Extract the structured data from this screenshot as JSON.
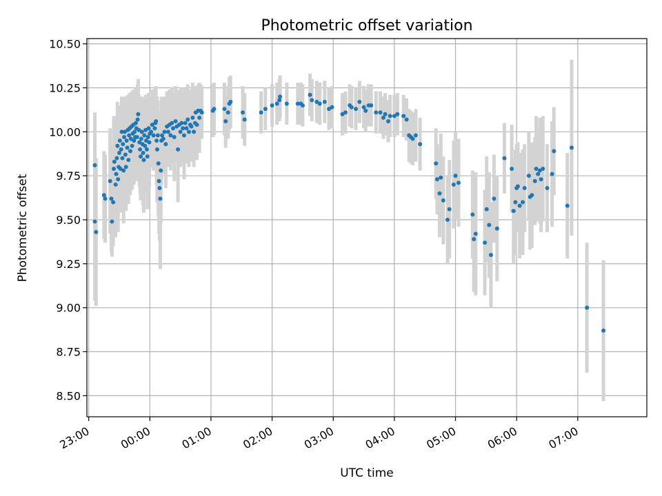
{
  "chart_data": {
    "type": "scatter",
    "title": "Photometric offset variation",
    "xlabel": "UTC time",
    "ylabel": "Photometric offset",
    "xlim_hours": [
      -1.03,
      8.13
    ],
    "ylim": [
      8.38,
      10.53
    ],
    "x_ticks": [
      {
        "hour": -1,
        "label": "23:00"
      },
      {
        "hour": 0,
        "label": "00:00"
      },
      {
        "hour": 1,
        "label": "01:00"
      },
      {
        "hour": 2,
        "label": "02:00"
      },
      {
        "hour": 3,
        "label": "03:00"
      },
      {
        "hour": 4,
        "label": "04:00"
      },
      {
        "hour": 5,
        "label": "05:00"
      },
      {
        "hour": 6,
        "label": "06:00"
      },
      {
        "hour": 7,
        "label": "07:00"
      }
    ],
    "y_ticks": [
      8.5,
      8.75,
      9.0,
      9.25,
      9.5,
      9.75,
      10.0,
      10.25,
      10.5
    ],
    "y_tick_labels": [
      "8.50",
      "8.75",
      "9.00",
      "9.25",
      "9.50",
      "9.75",
      "10.00",
      "10.25",
      "10.50"
    ],
    "grid": true,
    "colors": {
      "points": "#1f77b4",
      "errorbars": "#d3d3d3",
      "grid": "#b0b0b0"
    },
    "points": [
      [
        -0.9,
        9.81,
        0.3
      ],
      [
        -0.9,
        9.49,
        0.45
      ],
      [
        -0.88,
        9.43,
        0.42
      ],
      [
        -0.75,
        9.64,
        0.25
      ],
      [
        -0.73,
        9.62,
        0.25
      ],
      [
        -0.65,
        9.72,
        0.3
      ],
      [
        -0.63,
        9.62,
        0.3
      ],
      [
        -0.62,
        9.49,
        0.2
      ],
      [
        -0.6,
        9.6,
        0.25
      ],
      [
        -0.59,
        9.79,
        0.3
      ],
      [
        -0.58,
        9.83,
        0.25
      ],
      [
        -0.56,
        9.7,
        0.3
      ],
      [
        -0.55,
        9.76,
        0.25
      ],
      [
        -0.54,
        9.85,
        0.2
      ],
      [
        -0.53,
        9.92,
        0.25
      ],
      [
        -0.52,
        9.73,
        0.3
      ],
      [
        -0.51,
        9.8,
        0.25
      ],
      [
        -0.5,
        9.88,
        0.25
      ],
      [
        -0.49,
        9.95,
        0.2
      ],
      [
        -0.48,
        9.79,
        0.25
      ],
      [
        -0.47,
        9.9,
        0.25
      ],
      [
        -0.46,
        10.0,
        0.2
      ],
      [
        -0.45,
        9.85,
        0.25
      ],
      [
        -0.44,
        9.93,
        0.25
      ],
      [
        -0.43,
        9.78,
        0.3
      ],
      [
        -0.42,
        9.97,
        0.2
      ],
      [
        -0.41,
        10.0,
        0.2
      ],
      [
        -0.4,
        9.87,
        0.25
      ],
      [
        -0.39,
        9.8,
        0.25
      ],
      [
        -0.38,
        9.95,
        0.2
      ],
      [
        -0.37,
        9.91,
        0.25
      ],
      [
        -0.36,
        10.01,
        0.2
      ],
      [
        -0.35,
        9.84,
        0.25
      ],
      [
        -0.34,
        9.98,
        0.2
      ],
      [
        -0.33,
        10.02,
        0.2
      ],
      [
        -0.32,
        9.89,
        0.25
      ],
      [
        -0.31,
        9.96,
        0.2
      ],
      [
        -0.3,
        10.03,
        0.2
      ],
      [
        -0.29,
        9.92,
        0.25
      ],
      [
        -0.28,
        9.99,
        0.2
      ],
      [
        -0.27,
        10.04,
        0.2
      ],
      [
        -0.26,
        9.95,
        0.25
      ],
      [
        -0.25,
        10.0,
        0.2
      ],
      [
        -0.24,
        9.97,
        0.2
      ],
      [
        -0.23,
        10.05,
        0.2
      ],
      [
        -0.22,
        10.02,
        0.2
      ],
      [
        -0.21,
        9.97,
        0.25
      ],
      [
        -0.2,
        10.07,
        0.2
      ],
      [
        -0.19,
        10.1,
        0.2
      ],
      [
        -0.18,
        10.01,
        0.2
      ],
      [
        -0.17,
        9.94,
        0.25
      ],
      [
        -0.16,
        9.9,
        0.25
      ],
      [
        -0.15,
        9.86,
        0.25
      ],
      [
        -0.14,
        9.96,
        0.2
      ],
      [
        -0.13,
        10.0,
        0.2
      ],
      [
        -0.12,
        9.93,
        0.25
      ],
      [
        -0.11,
        9.88,
        0.3
      ],
      [
        -0.1,
        9.84,
        0.3
      ],
      [
        -0.09,
        9.98,
        0.2
      ],
      [
        -0.08,
        9.92,
        0.25
      ],
      [
        -0.07,
        10.01,
        0.2
      ],
      [
        -0.06,
        9.95,
        0.25
      ],
      [
        -0.05,
        9.9,
        0.25
      ],
      [
        -0.04,
        9.86,
        0.3
      ],
      [
        -0.03,
        9.97,
        0.2
      ],
      [
        -0.02,
        10.02,
        0.2
      ],
      [
        -0.01,
        9.94,
        0.25
      ],
      [
        0.0,
        9.99,
        0.2
      ],
      [
        0.02,
        10.0,
        0.2
      ],
      [
        0.04,
        10.04,
        0.2
      ],
      [
        0.06,
        9.98,
        0.2
      ],
      [
        0.08,
        10.02,
        0.2
      ],
      [
        0.09,
        10.05,
        0.2
      ],
      [
        0.1,
        10.06,
        0.2
      ],
      [
        0.11,
        9.95,
        0.25
      ],
      [
        0.12,
        9.9,
        0.3
      ],
      [
        0.13,
        9.98,
        0.2
      ],
      [
        0.14,
        9.82,
        0.3
      ],
      [
        0.15,
        9.72,
        0.3
      ],
      [
        0.16,
        9.68,
        0.3
      ],
      [
        0.17,
        9.62,
        0.4
      ],
      [
        0.18,
        9.78,
        0.3
      ],
      [
        0.19,
        9.95,
        0.25
      ],
      [
        0.2,
        9.98,
        0.2
      ],
      [
        0.22,
        9.96,
        0.2
      ],
      [
        0.24,
        10.0,
        0.2
      ],
      [
        0.26,
        9.93,
        0.25
      ],
      [
        0.28,
        10.03,
        0.2
      ],
      [
        0.3,
        10.0,
        0.2
      ],
      [
        0.32,
        10.04,
        0.2
      ],
      [
        0.34,
        9.98,
        0.2
      ],
      [
        0.36,
        10.05,
        0.2
      ],
      [
        0.38,
        10.02,
        0.2
      ],
      [
        0.4,
        9.97,
        0.25
      ],
      [
        0.42,
        10.06,
        0.2
      ],
      [
        0.44,
        10.03,
        0.2
      ],
      [
        0.46,
        9.9,
        0.3
      ],
      [
        0.48,
        10.04,
        0.2
      ],
      [
        0.5,
        10.0,
        0.2
      ],
      [
        0.52,
        10.05,
        0.2
      ],
      [
        0.54,
        10.02,
        0.2
      ],
      [
        0.56,
        9.98,
        0.25
      ],
      [
        0.58,
        10.05,
        0.2
      ],
      [
        0.6,
        10.02,
        0.2
      ],
      [
        0.62,
        10.07,
        0.2
      ],
      [
        0.64,
        10.0,
        0.2
      ],
      [
        0.66,
        10.04,
        0.2
      ],
      [
        0.68,
        10.03,
        0.2
      ],
      [
        0.7,
        10.08,
        0.2
      ],
      [
        0.72,
        10.0,
        0.2
      ],
      [
        0.74,
        10.05,
        0.2
      ],
      [
        0.75,
        10.11,
        0.15
      ],
      [
        0.77,
        10.04,
        0.2
      ],
      [
        0.79,
        10.12,
        0.15
      ],
      [
        0.81,
        10.08,
        0.2
      ],
      [
        0.83,
        10.12,
        0.15
      ],
      [
        0.85,
        10.11,
        0.15
      ],
      [
        1.03,
        10.12,
        0.15
      ],
      [
        1.05,
        10.13,
        0.15
      ],
      [
        1.22,
        10.13,
        0.15
      ],
      [
        1.24,
        10.06,
        0.15
      ],
      [
        1.28,
        10.11,
        0.15
      ],
      [
        1.3,
        10.16,
        0.15
      ],
      [
        1.32,
        10.17,
        0.15
      ],
      [
        1.52,
        10.11,
        0.15
      ],
      [
        1.55,
        10.07,
        0.15
      ],
      [
        1.82,
        10.11,
        0.12
      ],
      [
        1.89,
        10.13,
        0.12
      ],
      [
        2.0,
        10.15,
        0.12
      ],
      [
        2.08,
        10.16,
        0.12
      ],
      [
        2.12,
        10.18,
        0.12
      ],
      [
        2.13,
        10.2,
        0.12
      ],
      [
        2.24,
        10.16,
        0.12
      ],
      [
        2.42,
        10.16,
        0.12
      ],
      [
        2.47,
        10.16,
        0.12
      ],
      [
        2.5,
        10.15,
        0.12
      ],
      [
        2.62,
        10.21,
        0.12
      ],
      [
        2.65,
        10.18,
        0.12
      ],
      [
        2.73,
        10.17,
        0.12
      ],
      [
        2.78,
        10.16,
        0.12
      ],
      [
        2.86,
        10.17,
        0.12
      ],
      [
        2.93,
        10.13,
        0.12
      ],
      [
        2.98,
        10.14,
        0.12
      ],
      [
        3.15,
        10.1,
        0.12
      ],
      [
        3.2,
        10.11,
        0.12
      ],
      [
        3.27,
        10.15,
        0.12
      ],
      [
        3.3,
        10.14,
        0.12
      ],
      [
        3.37,
        10.13,
        0.12
      ],
      [
        3.43,
        10.17,
        0.12
      ],
      [
        3.5,
        10.14,
        0.12
      ],
      [
        3.53,
        10.12,
        0.12
      ],
      [
        3.58,
        10.15,
        0.12
      ],
      [
        3.62,
        10.15,
        0.12
      ],
      [
        3.7,
        10.11,
        0.12
      ],
      [
        3.77,
        10.11,
        0.12
      ],
      [
        3.82,
        10.08,
        0.12
      ],
      [
        3.85,
        10.1,
        0.12
      ],
      [
        3.9,
        10.06,
        0.12
      ],
      [
        3.93,
        10.09,
        0.12
      ],
      [
        4.0,
        10.09,
        0.12
      ],
      [
        4.05,
        10.1,
        0.12
      ],
      [
        4.15,
        10.09,
        0.12
      ],
      [
        4.2,
        10.07,
        0.12
      ],
      [
        4.24,
        9.98,
        0.15
      ],
      [
        4.27,
        9.97,
        0.15
      ],
      [
        4.3,
        9.96,
        0.15
      ],
      [
        4.35,
        9.98,
        0.15
      ],
      [
        4.42,
        9.93,
        0.15
      ],
      [
        4.68,
        9.82,
        0.2
      ],
      [
        4.7,
        9.73,
        0.2
      ],
      [
        4.74,
        9.65,
        0.25
      ],
      [
        4.76,
        9.74,
        0.25
      ],
      [
        4.8,
        9.61,
        0.25
      ],
      [
        4.87,
        9.5,
        0.25
      ],
      [
        4.9,
        9.56,
        0.28
      ],
      [
        4.97,
        9.7,
        0.25
      ],
      [
        5.0,
        9.75,
        0.25
      ],
      [
        5.05,
        9.71,
        0.25
      ],
      [
        5.28,
        9.53,
        0.25
      ],
      [
        5.3,
        9.39,
        0.3
      ],
      [
        5.33,
        9.42,
        0.35
      ],
      [
        5.48,
        9.37,
        0.3
      ],
      [
        5.51,
        9.56,
        0.3
      ],
      [
        5.55,
        9.47,
        0.3
      ],
      [
        5.58,
        9.3,
        0.3
      ],
      [
        5.63,
        9.62,
        0.25
      ],
      [
        5.68,
        9.45,
        0.3
      ],
      [
        5.8,
        9.85,
        0.2
      ],
      [
        5.92,
        9.79,
        0.25
      ],
      [
        5.95,
        9.55,
        0.3
      ],
      [
        5.98,
        9.6,
        0.3
      ],
      [
        6.0,
        9.68,
        0.25
      ],
      [
        6.02,
        9.69,
        0.25
      ],
      [
        6.05,
        9.58,
        0.3
      ],
      [
        6.1,
        9.6,
        0.3
      ],
      [
        6.13,
        9.68,
        0.25
      ],
      [
        6.2,
        9.75,
        0.25
      ],
      [
        6.22,
        9.63,
        0.3
      ],
      [
        6.25,
        9.64,
        0.3
      ],
      [
        6.3,
        9.72,
        0.25
      ],
      [
        6.32,
        9.79,
        0.3
      ],
      [
        6.35,
        9.76,
        0.25
      ],
      [
        6.38,
        9.78,
        0.3
      ],
      [
        6.4,
        9.73,
        0.3
      ],
      [
        6.43,
        9.79,
        0.3
      ],
      [
        6.5,
        9.68,
        0.25
      ],
      [
        6.58,
        9.76,
        0.3
      ],
      [
        6.61,
        9.89,
        0.25
      ],
      [
        6.83,
        9.58,
        0.3
      ],
      [
        6.9,
        9.91,
        0.5
      ],
      [
        7.15,
        9.0,
        0.37
      ],
      [
        7.42,
        8.87,
        0.4
      ]
    ]
  }
}
